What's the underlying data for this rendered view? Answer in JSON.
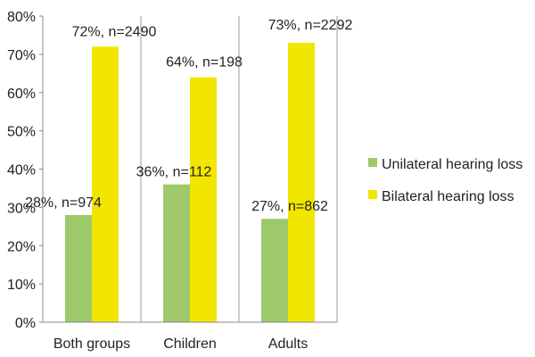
{
  "chart_data": {
    "type": "bar",
    "title": "",
    "xlabel": "",
    "ylabel": "",
    "ylim": [
      0,
      80
    ],
    "ytick_labels": [
      "0%",
      "10%",
      "20%",
      "30%",
      "40%",
      "50%",
      "60%",
      "70%",
      "80%"
    ],
    "yticks": [
      0,
      10,
      20,
      30,
      40,
      50,
      60,
      70,
      80
    ],
    "categories": [
      "Both groups",
      "Children",
      "Adults"
    ],
    "series": [
      {
        "name": "Unilateral hearing loss",
        "color": "#9dc96b",
        "values": [
          28,
          36,
          27
        ],
        "labels": [
          "28%, n=974",
          "36%, n=112",
          "27%, n=862"
        ]
      },
      {
        "name": "Bilateral hearing loss",
        "color": "#f2e600",
        "values": [
          72,
          64,
          73
        ],
        "labels": [
          "72%, n=2490",
          "64%, n=198",
          "73%, n=2292"
        ]
      }
    ],
    "legend_position": "right"
  }
}
